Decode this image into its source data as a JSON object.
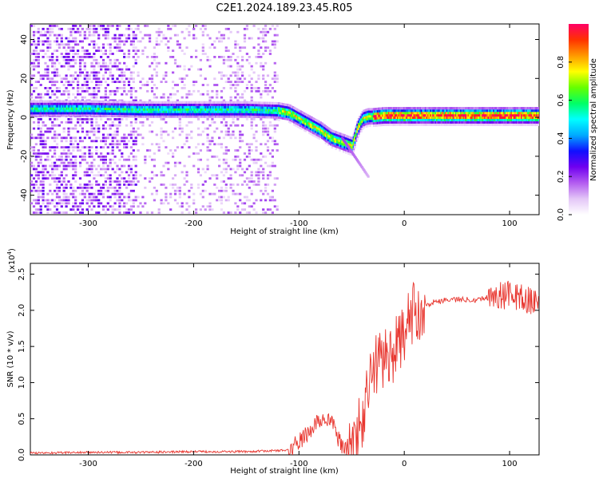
{
  "title": "C2E1.2024.189.23.45.R05",
  "chart_data": [
    {
      "type": "heatmap",
      "xlabel": "Height of straight line (km)",
      "ylabel": "Frequency (Hz)",
      "xlim": [
        -355,
        128
      ],
      "ylim": [
        -50,
        48
      ],
      "xticks": [
        -300,
        -200,
        -100,
        0,
        100
      ],
      "yticks": [
        -40,
        -20,
        0,
        20,
        40
      ],
      "colorbar": {
        "label": "Normalized spectral amplitude",
        "range": [
          0,
          1
        ],
        "ticks": [
          0.0,
          0.2,
          0.4,
          0.6,
          0.8
        ],
        "colors": [
          "#ffffff",
          "#e3c6f7",
          "#b35cf0",
          "#7000f0",
          "#1010ff",
          "#00aaff",
          "#00ffff",
          "#00ff66",
          "#66ff00",
          "#ffff00",
          "#ff9900",
          "#ff3300",
          "#ff0066"
        ]
      },
      "ridge": {
        "x": [
          -355,
          -300,
          -250,
          -200,
          -150,
          -120,
          -110,
          -100,
          -90,
          -80,
          -70,
          -60,
          -50,
          -45,
          -40,
          -35,
          -30,
          -20,
          -10,
          0,
          20,
          50,
          80,
          100,
          128
        ],
        "y": [
          5,
          5,
          4.5,
          4.5,
          4.5,
          4,
          3,
          0,
          -3,
          -6,
          -10,
          -12,
          -14,
          -5,
          0,
          1,
          1,
          1.5,
          1.5,
          1.5,
          1.5,
          1.5,
          1.5,
          1.5,
          1.5
        ]
      }
    },
    {
      "type": "line",
      "xlabel": "Height of straight line (km)",
      "ylabel": "SNR (10 * v/v)",
      "yscale_label": "(x10",
      "yscale_exp": "4",
      "yscale_close": ")",
      "xlim": [
        -355,
        128
      ],
      "ylim": [
        0,
        2.65
      ],
      "xticks": [
        -300,
        -200,
        -100,
        0,
        100
      ],
      "yticks": [
        0.0,
        0.5,
        1.0,
        1.5,
        2.0,
        2.5
      ],
      "ytick_labels": [
        "0.0",
        "0.5",
        "1.0",
        "1.5",
        "2.0",
        "2.5"
      ],
      "color": "#e8352e",
      "series": [
        {
          "x": [
            -355,
            -300,
            -250,
            -200,
            -150,
            -110,
            -100,
            -90,
            -80,
            -75,
            -70,
            -65,
            -60,
            -55,
            -50,
            -45,
            -40,
            -35,
            -30,
            -25,
            -20,
            -15,
            -10,
            -5,
            0,
            10,
            20,
            30,
            40,
            50,
            60,
            70,
            80,
            90,
            100,
            110,
            120,
            128
          ],
          "y": [
            0.01,
            0.02,
            0.02,
            0.03,
            0.03,
            0.05,
            0.15,
            0.3,
            0.45,
            0.5,
            0.45,
            0.3,
            0.1,
            0.05,
            0.1,
            0.25,
            0.5,
            0.8,
            1.2,
            1.3,
            1.35,
            1.4,
            1.45,
            1.5,
            1.7,
            2.0,
            2.08,
            2.12,
            2.15,
            2.15,
            2.15,
            2.15,
            2.18,
            2.2,
            2.22,
            2.18,
            2.12,
            2.1
          ]
        }
      ]
    }
  ]
}
